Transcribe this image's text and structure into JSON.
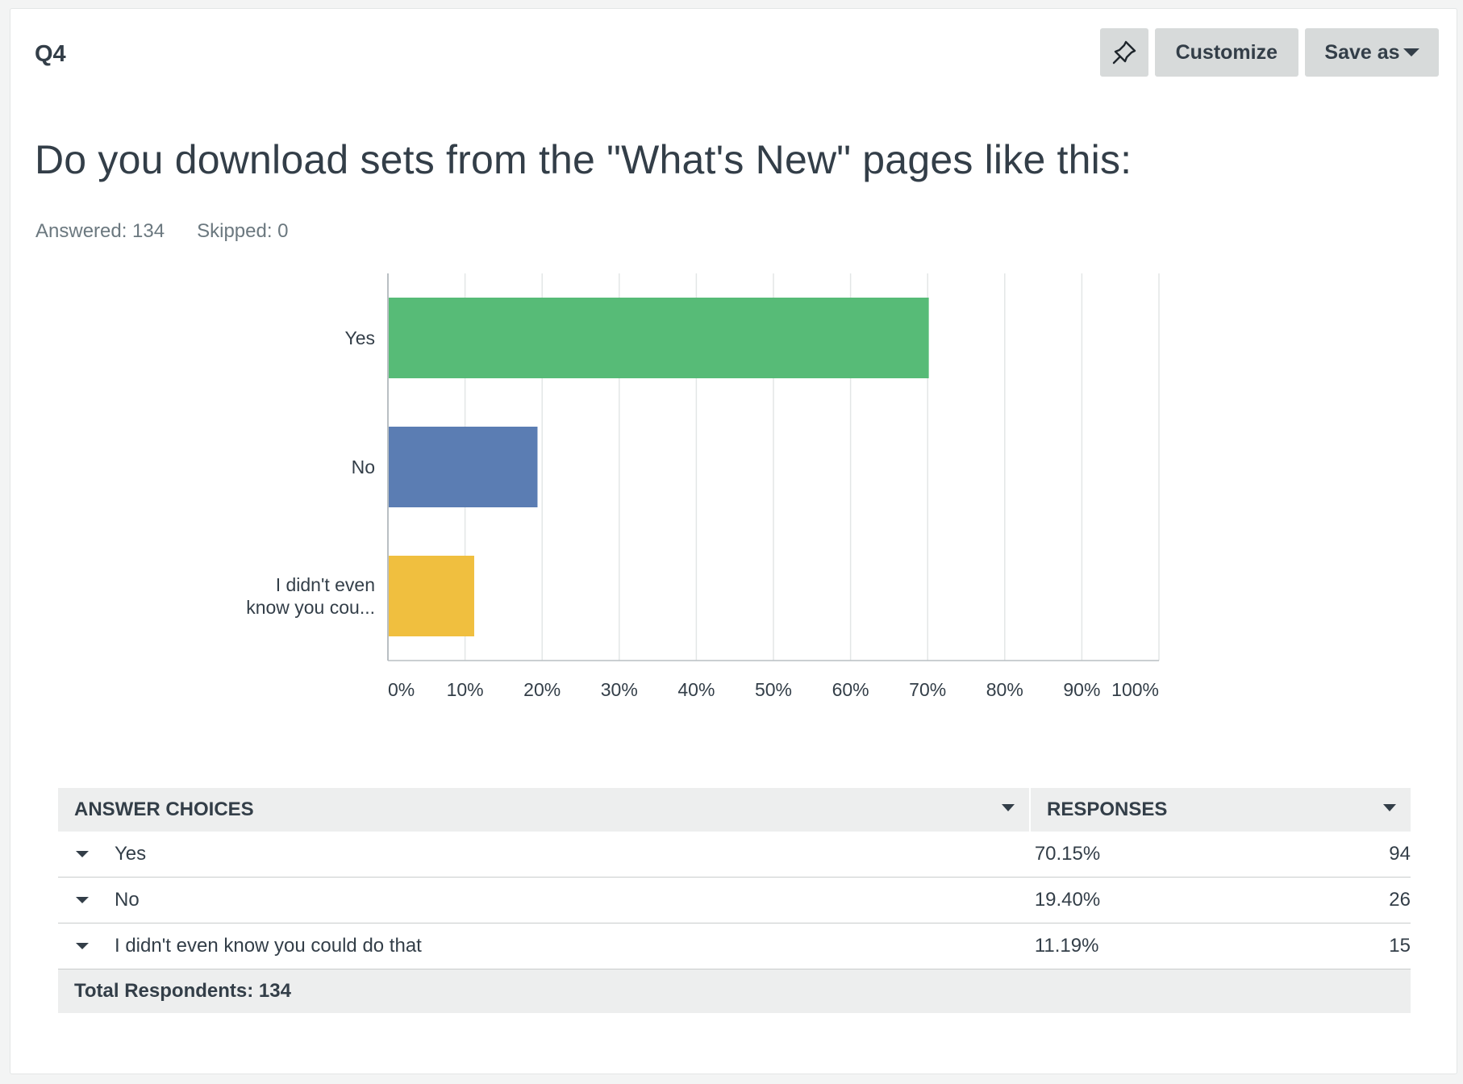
{
  "question": {
    "number": "Q4",
    "title": "Do you download sets from the \"What's New\" pages like this:",
    "answered": "Answered: 134",
    "skipped": "Skipped: 0"
  },
  "toolbar": {
    "pin_icon": "pin-icon",
    "customize_label": "Customize",
    "save_as_label": "Save as"
  },
  "chart_data": {
    "type": "bar",
    "orientation": "horizontal",
    "categories": [
      "Yes",
      "No",
      "I didn't even know you cou..."
    ],
    "values": [
      70.15,
      19.4,
      11.19
    ],
    "colors": [
      "#57bb77",
      "#5b7db3",
      "#f0bf3f"
    ],
    "xlim": [
      0,
      100
    ],
    "x_ticks": [
      "0%",
      "10%",
      "20%",
      "30%",
      "40%",
      "50%",
      "60%",
      "70%",
      "80%",
      "90%",
      "100%"
    ],
    "grid": true
  },
  "table": {
    "headers": {
      "choices": "ANSWER CHOICES",
      "responses": "RESPONSES"
    },
    "rows": [
      {
        "choice": "Yes",
        "percent": "70.15%",
        "count": "94"
      },
      {
        "choice": "No",
        "percent": "19.40%",
        "count": "26"
      },
      {
        "choice": "I didn't even know you could do that",
        "percent": "11.19%",
        "count": "15"
      }
    ],
    "total": "Total Respondents: 134"
  }
}
